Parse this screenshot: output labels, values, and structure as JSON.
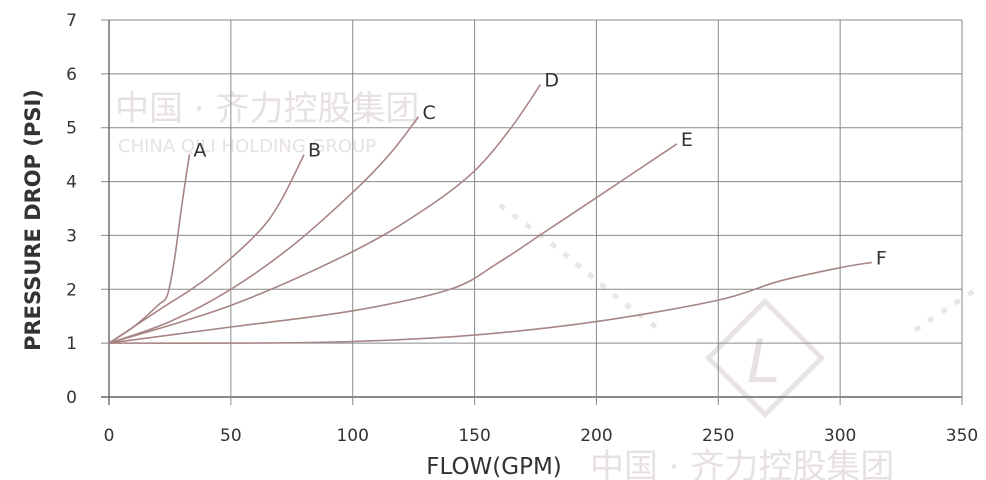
{
  "watermark": {
    "text_cn": "中国 · 齐力控股集团",
    "text_en": "CHINA QILI HOLDING GROUP",
    "logo_glyph": "L"
  },
  "chart_data": {
    "type": "line",
    "title": "",
    "xlabel": "FLOW(GPM)",
    "ylabel": "PRESSURE DROP (PSI)",
    "xlim": [
      0,
      350
    ],
    "ylim": [
      0,
      7
    ],
    "xticks": [
      0,
      50,
      100,
      150,
      200,
      250,
      300,
      350
    ],
    "yticks": [
      0,
      1,
      2,
      3,
      4,
      5,
      6,
      7
    ],
    "grid": true,
    "legend": "labels at curve ends",
    "colors": {
      "curve": "#a88585",
      "grid": "#8a8a8a",
      "axis": "#666666",
      "text": "#333333"
    },
    "series": [
      {
        "name": "A",
        "points": [
          [
            0,
            1
          ],
          [
            10,
            1.3
          ],
          [
            20,
            1.7
          ],
          [
            24,
            1.9
          ],
          [
            27,
            2.6
          ],
          [
            30,
            3.6
          ],
          [
            33,
            4.5
          ]
        ]
      },
      {
        "name": "B",
        "points": [
          [
            0,
            1
          ],
          [
            20,
            1.6
          ],
          [
            40,
            2.2
          ],
          [
            60,
            3.0
          ],
          [
            70,
            3.6
          ],
          [
            80,
            4.5
          ]
        ]
      },
      {
        "name": "C",
        "points": [
          [
            0,
            1
          ],
          [
            25,
            1.4
          ],
          [
            50,
            2.0
          ],
          [
            75,
            2.8
          ],
          [
            100,
            3.8
          ],
          [
            115,
            4.5
          ],
          [
            127,
            5.2
          ]
        ]
      },
      {
        "name": "D",
        "points": [
          [
            0,
            1
          ],
          [
            50,
            1.7
          ],
          [
            100,
            2.7
          ],
          [
            130,
            3.5
          ],
          [
            150,
            4.2
          ],
          [
            165,
            5.0
          ],
          [
            177,
            5.8
          ]
        ]
      },
      {
        "name": "E",
        "points": [
          [
            0,
            1
          ],
          [
            50,
            1.3
          ],
          [
            100,
            1.6
          ],
          [
            140,
            2.0
          ],
          [
            160,
            2.5
          ],
          [
            180,
            3.1
          ],
          [
            200,
            3.7
          ],
          [
            233,
            4.7
          ]
        ]
      },
      {
        "name": "F",
        "points": [
          [
            0,
            1
          ],
          [
            50,
            1.0
          ],
          [
            100,
            1.03
          ],
          [
            150,
            1.15
          ],
          [
            200,
            1.4
          ],
          [
            250,
            1.8
          ],
          [
            275,
            2.15
          ],
          [
            300,
            2.4
          ],
          [
            313,
            2.5
          ]
        ]
      }
    ]
  }
}
